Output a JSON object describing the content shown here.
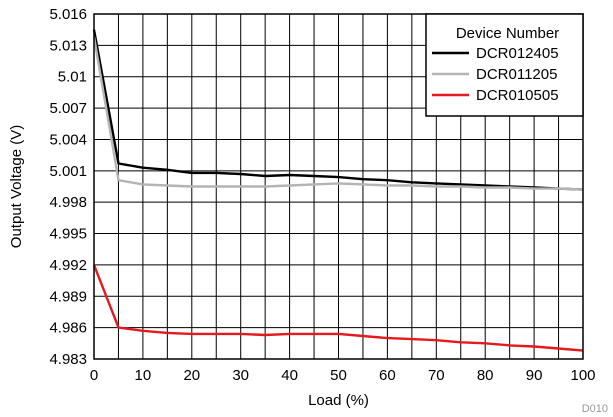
{
  "chart_data": {
    "type": "line",
    "title": "",
    "xlabel": "Load (%)",
    "ylabel": "Output Voltage (V)",
    "xlim": [
      0,
      100
    ],
    "ylim": [
      4.983,
      5.016
    ],
    "x_ticks": [
      "0",
      "10",
      "20",
      "30",
      "40",
      "50",
      "60",
      "70",
      "80",
      "90",
      "100"
    ],
    "y_ticks": [
      "5.016",
      "5.013",
      "5.01",
      "5.007",
      "5.004",
      "5.001",
      "4.998",
      "4.995",
      "4.992",
      "4.989",
      "4.986",
      "4.983"
    ],
    "x_minor_step": 5,
    "grid": true,
    "legend": {
      "title": "Device Number",
      "position": "top-right"
    },
    "series": [
      {
        "name": "DCR012405",
        "color": "#000000",
        "x": [
          0,
          5,
          10,
          15,
          20,
          25,
          30,
          35,
          40,
          45,
          50,
          55,
          60,
          65,
          70,
          75,
          80,
          85,
          90,
          95,
          100
        ],
        "y": [
          5.0145,
          5.0017,
          5.0013,
          5.0011,
          5.0008,
          5.0008,
          5.0007,
          5.0005,
          5.0006,
          5.0005,
          5.0004,
          5.0002,
          5.0001,
          4.9999,
          4.9998,
          4.9997,
          4.9996,
          4.9995,
          4.9994,
          4.9993,
          4.9992
        ]
      },
      {
        "name": "DCR011205",
        "color": "#b4b4b4",
        "x": [
          0,
          5,
          10,
          15,
          20,
          25,
          30,
          35,
          40,
          45,
          50,
          55,
          60,
          65,
          70,
          75,
          80,
          85,
          90,
          95,
          100
        ],
        "y": [
          5.0138,
          5.0001,
          4.9997,
          4.9996,
          4.9995,
          4.9995,
          4.9995,
          4.9995,
          4.9996,
          4.9997,
          4.9998,
          4.9997,
          4.9996,
          4.9996,
          4.9995,
          4.9995,
          4.9994,
          4.9994,
          4.9993,
          4.9993,
          4.9992
        ]
      },
      {
        "name": "DCR010505",
        "color": "#e41a1c",
        "x": [
          0,
          5,
          10,
          15,
          20,
          25,
          30,
          35,
          40,
          45,
          50,
          55,
          60,
          65,
          70,
          75,
          80,
          85,
          90,
          95,
          100
        ],
        "y": [
          4.992,
          4.986,
          4.9857,
          4.9855,
          4.9854,
          4.9854,
          4.9854,
          4.9853,
          4.9854,
          4.9854,
          4.9854,
          4.9852,
          4.985,
          4.9849,
          4.9848,
          4.9846,
          4.9845,
          4.9843,
          4.9842,
          4.984,
          4.9838
        ]
      }
    ],
    "watermark": "D010"
  }
}
